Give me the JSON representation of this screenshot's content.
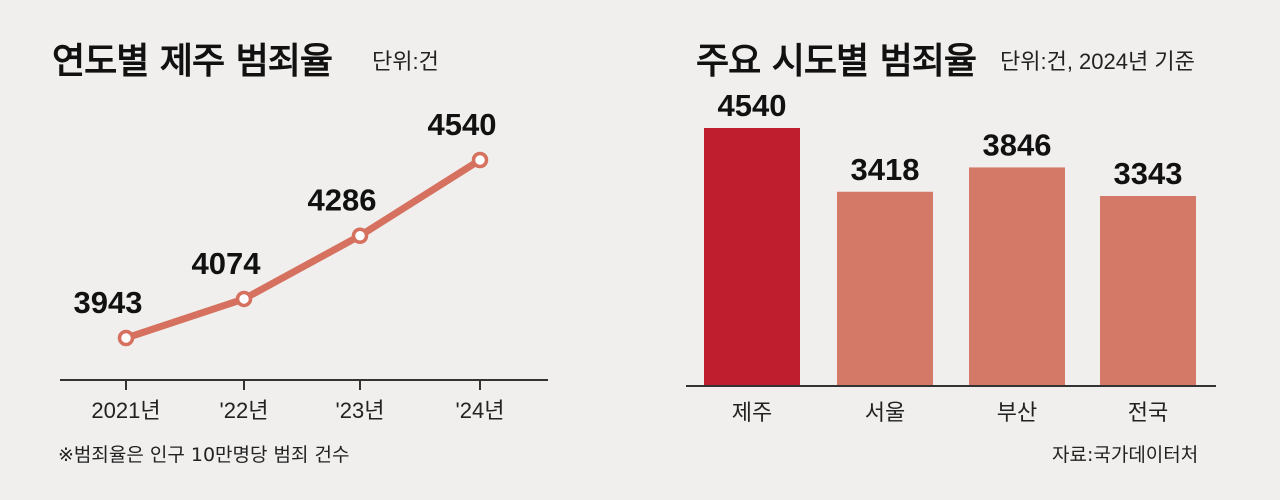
{
  "left": {
    "title": "연도별 제주 범죄율",
    "unit": "단위:건",
    "footnote": "※범죄율은 인구 10만명당 범죄 건수"
  },
  "right": {
    "title": "주요 시도별 범죄율",
    "unit": "단위:건, 2024년 기준",
    "source": "자료:국가데이터처"
  },
  "colors": {
    "line": "#d6705f",
    "bar_highlight": "#be1e2d",
    "bar": "#d47868",
    "axis": "#333333"
  },
  "chart_data": [
    {
      "type": "line",
      "title": "연도별 제주 범죄율",
      "unit": "단위:건",
      "categories": [
        "2021년",
        "'22년",
        "'23년",
        "'24년"
      ],
      "values": [
        3943,
        4074,
        4286,
        4540
      ],
      "ylim": [
        3800,
        4600
      ],
      "grid": false
    },
    {
      "type": "bar",
      "title": "주요 시도별 범죄율",
      "unit": "단위:건, 2024년 기준",
      "categories": [
        "제주",
        "서울",
        "부산",
        "전국"
      ],
      "values": [
        4540,
        3418,
        3846,
        3343
      ],
      "highlight": "제주",
      "ylim": [
        0,
        5000
      ],
      "grid": false
    }
  ]
}
